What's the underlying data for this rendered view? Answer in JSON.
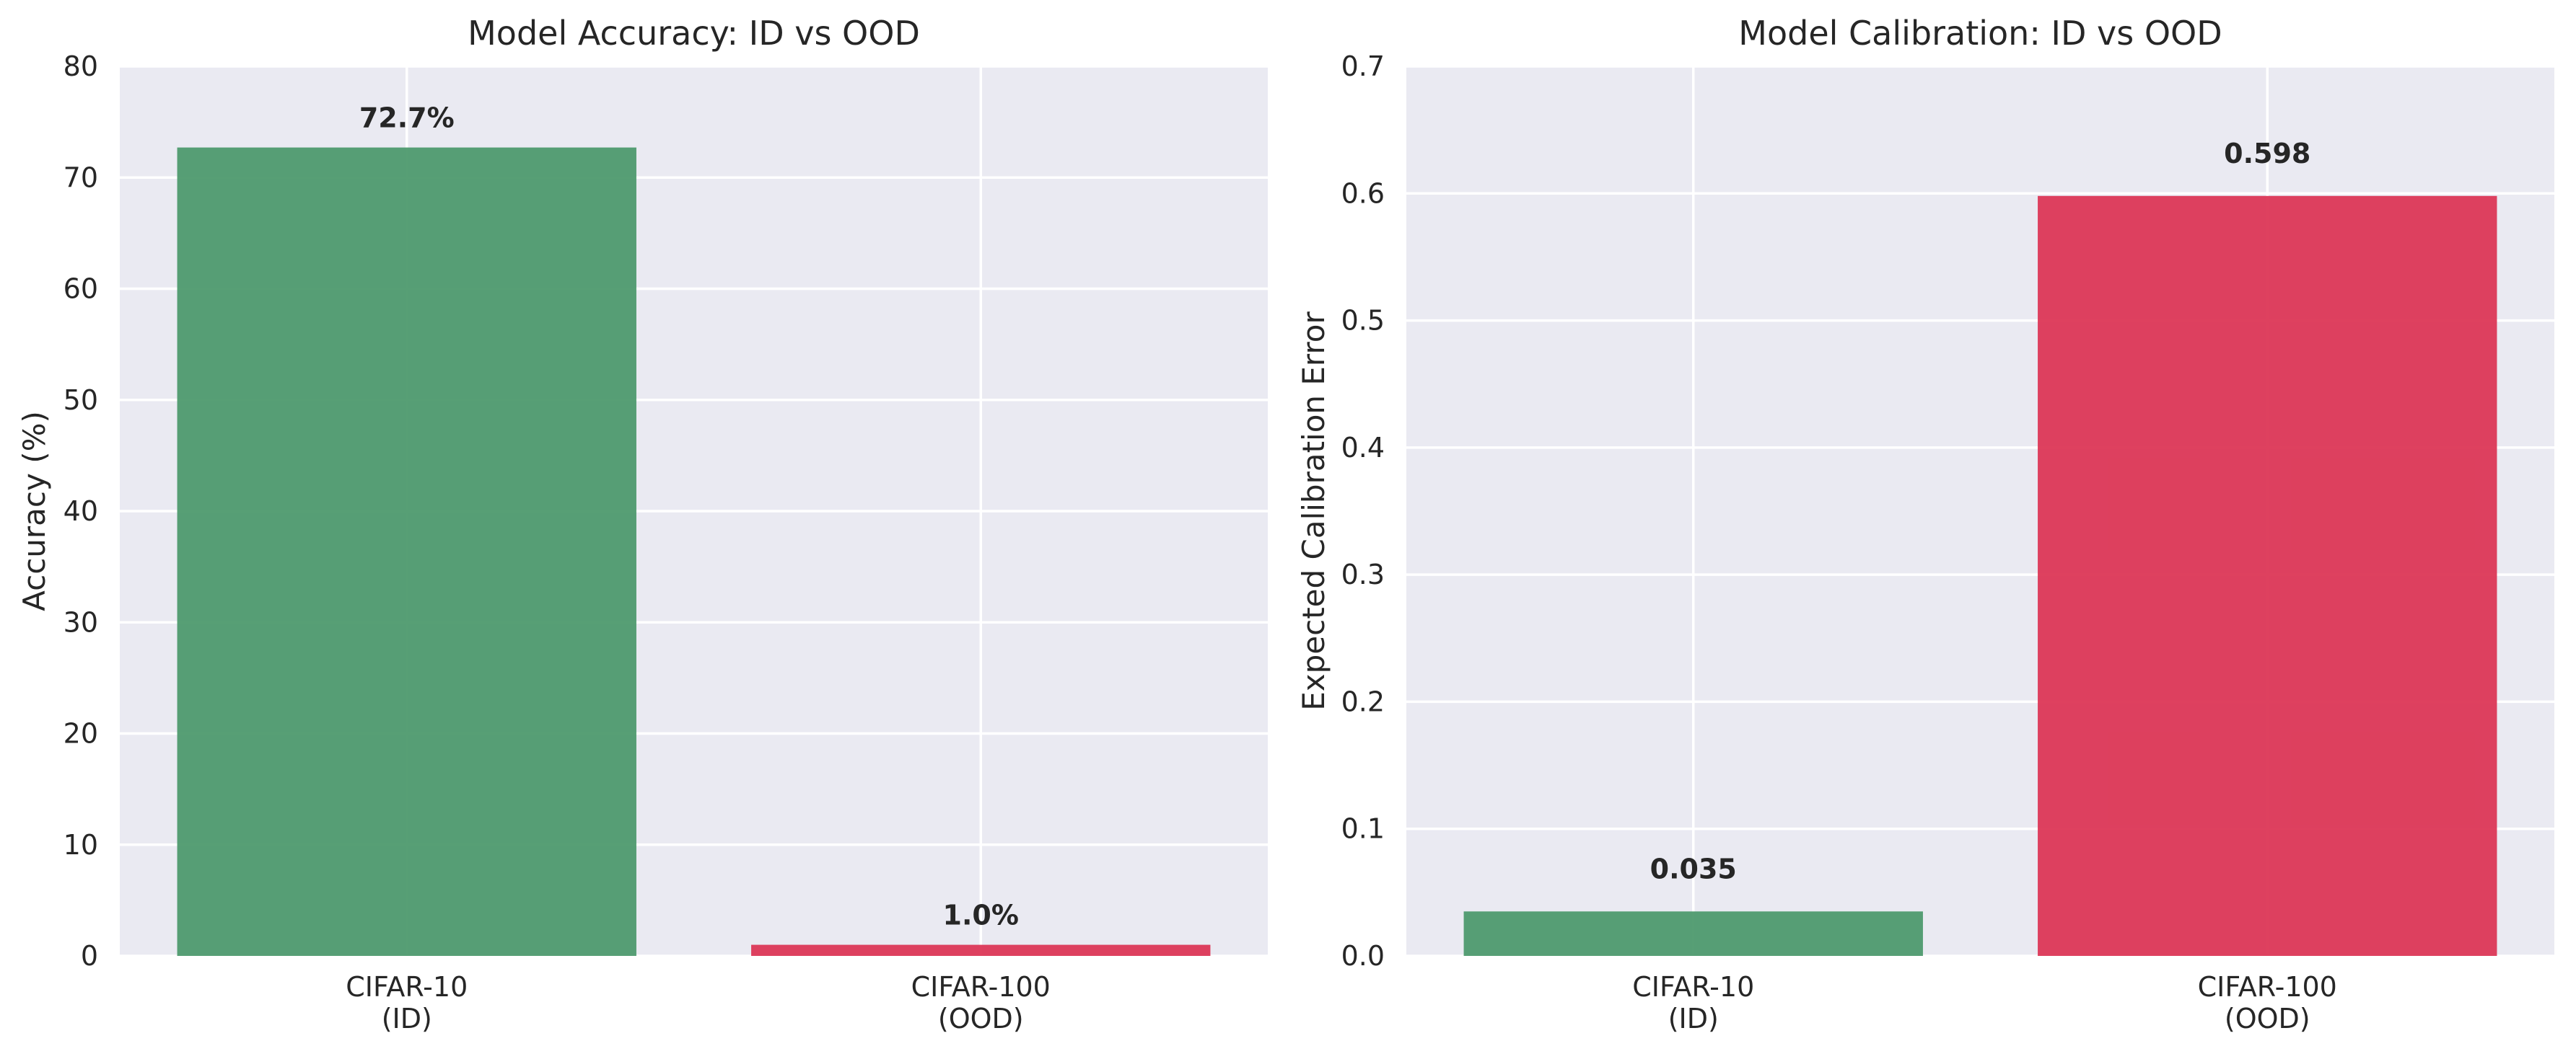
{
  "chart_data": [
    {
      "type": "bar",
      "title": "Model Accuracy: ID vs OOD",
      "xlabel": "",
      "ylabel": "Accuracy (%)",
      "categories": [
        [
          "CIFAR-10",
          "(ID)"
        ],
        [
          "CIFAR-100",
          "(OOD)"
        ]
      ],
      "values": [
        72.7,
        1.0
      ],
      "data_labels": [
        "72.7%",
        "1.0%"
      ],
      "colors": [
        "#4e9a6e",
        "#dc3756"
      ],
      "ylim": [
        0,
        80
      ],
      "yticks": [
        0,
        10,
        20,
        30,
        40,
        50,
        60,
        70,
        80
      ],
      "ytick_labels": [
        "0",
        "10",
        "20",
        "30",
        "40",
        "50",
        "60",
        "70",
        "80"
      ],
      "grid": true,
      "legend": "none"
    },
    {
      "type": "bar",
      "title": "Model Calibration: ID vs OOD",
      "xlabel": "",
      "ylabel": "Expected Calibration Error",
      "categories": [
        [
          "CIFAR-10",
          "(ID)"
        ],
        [
          "CIFAR-100",
          "(OOD)"
        ]
      ],
      "values": [
        0.035,
        0.598
      ],
      "data_labels": [
        "0.035",
        "0.598"
      ],
      "colors": [
        "#4e9a6e",
        "#dc3756"
      ],
      "ylim": [
        0,
        0.7
      ],
      "yticks": [
        0.0,
        0.1,
        0.2,
        0.3,
        0.4,
        0.5,
        0.6,
        0.7
      ],
      "ytick_labels": [
        "0.0",
        "0.1",
        "0.2",
        "0.3",
        "0.4",
        "0.5",
        "0.6",
        "0.7"
      ],
      "grid": true,
      "legend": "none"
    }
  ]
}
